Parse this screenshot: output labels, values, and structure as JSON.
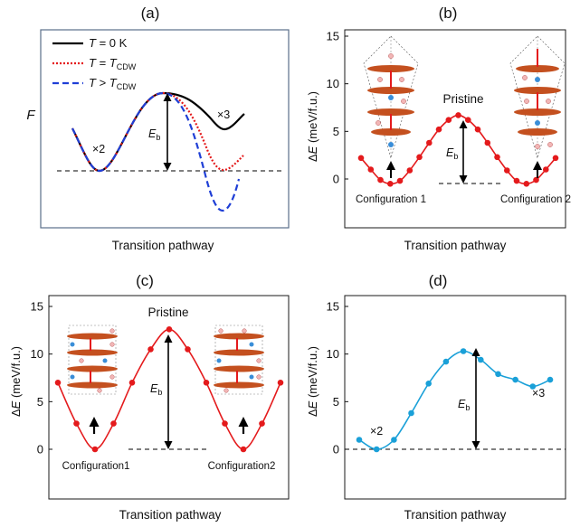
{
  "panels": {
    "a": {
      "label": "(a)",
      "ylabel": "F",
      "xlabel": "Transition pathway"
    },
    "b": {
      "label": "(b)",
      "xlabel": "Transition pathway"
    },
    "c": {
      "label": "(c)",
      "xlabel": "Transition pathway"
    },
    "d": {
      "label": "(d)",
      "xlabel": "Transition pathway"
    }
  },
  "colors": {
    "red": "#e41a1c",
    "blue_dash": "#1f3fd6",
    "cyan": "#1aa0d8",
    "black": "#000000"
  },
  "chart_data": [
    {
      "panel": "a",
      "type": "line",
      "xlabel": "Transition pathway",
      "ylabel": "F",
      "legend_position": "top-left",
      "series": [
        {
          "name": "T = 0 K",
          "style": "solid",
          "color": "#000000"
        },
        {
          "name": "T = T_CDW",
          "style": "dotted",
          "color": "#e41a1c"
        },
        {
          "name": "T > T_CDW",
          "style": "dashed",
          "color": "#1f3fd6"
        }
      ],
      "annotations": [
        "×2",
        "×3",
        "E_b"
      ]
    },
    {
      "panel": "b",
      "type": "line",
      "xlabel": "Transition pathway",
      "ylim": [
        -1,
        15
      ],
      "yticks": [
        0,
        5,
        10,
        15
      ],
      "color": "#e41a1c",
      "x": [
        0,
        1,
        2,
        3,
        4,
        5,
        6,
        7,
        8,
        9,
        10,
        11,
        12,
        13,
        14,
        15,
        16,
        17,
        18,
        19,
        20
      ],
      "values": [
        2.2,
        1.0,
        -0.1,
        -0.5,
        -0.2,
        0.9,
        2.3,
        3.8,
        5.2,
        6.2,
        6.7,
        6.2,
        5.2,
        3.8,
        2.3,
        0.9,
        -0.2,
        -0.5,
        -0.1,
        1.0,
        2.2
      ],
      "annotations": [
        "Pristine",
        "E_b",
        "Configuration 1",
        "Configuration 2"
      ]
    },
    {
      "panel": "c",
      "type": "line",
      "xlabel": "Transition pathway",
      "ylim": [
        -1,
        15
      ],
      "yticks": [
        0,
        5,
        10,
        15
      ],
      "color": "#e41a1c",
      "x": [
        0,
        1,
        2,
        3,
        4,
        5,
        6,
        7,
        8,
        9,
        10,
        11,
        12
      ],
      "values": [
        7.0,
        2.7,
        0.0,
        2.7,
        7.0,
        10.5,
        12.6,
        10.5,
        7.0,
        2.7,
        0.0,
        2.7,
        7.0
      ],
      "annotations": [
        "Pristine",
        "E_b",
        "Configuration1",
        "Configuration2"
      ]
    },
    {
      "panel": "d",
      "type": "line",
      "xlabel": "Transition pathway",
      "ylim": [
        -1,
        15
      ],
      "yticks": [
        0,
        5,
        10,
        15
      ],
      "color": "#1aa0d8",
      "x": [
        0,
        1,
        2,
        3,
        4,
        5,
        6,
        7,
        8,
        9,
        10,
        11
      ],
      "values": [
        1.0,
        0.0,
        1.0,
        3.8,
        6.9,
        9.2,
        10.3,
        9.4,
        7.9,
        7.3,
        6.6,
        7.3
      ],
      "annotations": [
        "×2",
        "×3",
        "E_b"
      ]
    }
  ]
}
